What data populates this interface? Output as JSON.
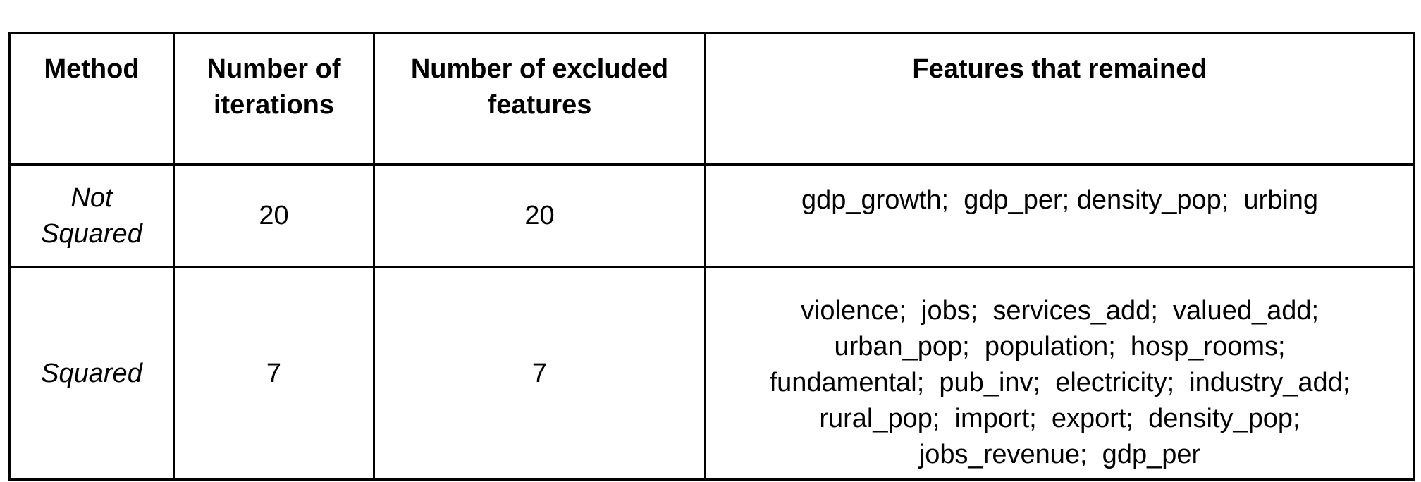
{
  "table": {
    "headers": {
      "method": "Method",
      "iterations_line1": "Number of",
      "iterations_line2": "iterations",
      "excluded_line1": "Number of excluded",
      "excluded_line2": "features",
      "remained": "Features that remained"
    },
    "rows": [
      {
        "method_line1": "Not",
        "method_line2": "Squared",
        "iterations": "20",
        "excluded": "20",
        "features_lines": [
          "gdp_growth;  gdp_per; density_pop;  urbing"
        ]
      },
      {
        "method_line1": "Squared",
        "iterations": "7",
        "excluded": "7",
        "features_lines": [
          "violence;  jobs;  services_add;  valued_add;",
          "urban_pop;  population;  hosp_rooms;",
          "fundamental;  pub_inv;  electricity;  industry_add;",
          "rural_pop;  import;  export;  density_pop;",
          "jobs_revenue;  gdp_per"
        ]
      }
    ]
  }
}
